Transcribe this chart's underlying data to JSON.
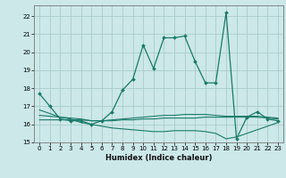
{
  "xlabel": "Humidex (Indice chaleur)",
  "bg_color": "#cce8e8",
  "grid_color": "#aacccc",
  "line_color": "#1a7a6a",
  "xlim": [
    -0.5,
    23.5
  ],
  "ylim": [
    15,
    22.6
  ],
  "yticks": [
    15,
    16,
    17,
    18,
    19,
    20,
    21,
    22
  ],
  "xticks": [
    0,
    1,
    2,
    3,
    4,
    5,
    6,
    7,
    8,
    9,
    10,
    11,
    12,
    13,
    14,
    15,
    16,
    17,
    18,
    19,
    20,
    21,
    22,
    23
  ],
  "series1_x": [
    0,
    1,
    2,
    3,
    4,
    5,
    6,
    7,
    8,
    9,
    10,
    11,
    12,
    13,
    14,
    15,
    16,
    17,
    18,
    19,
    20,
    21,
    22,
    23
  ],
  "series1_y": [
    17.7,
    17.0,
    16.3,
    16.2,
    16.2,
    16.0,
    16.2,
    16.7,
    17.9,
    18.5,
    20.4,
    19.1,
    20.8,
    20.8,
    20.9,
    19.5,
    18.3,
    18.3,
    22.2,
    15.2,
    16.4,
    16.7,
    16.3,
    16.2
  ],
  "series2_x": [
    0,
    1,
    2,
    3,
    4,
    5,
    6,
    7,
    8,
    9,
    10,
    11,
    12,
    13,
    14,
    15,
    16,
    17,
    18,
    19,
    20,
    21,
    22,
    23
  ],
  "series2_y": [
    16.25,
    16.25,
    16.25,
    16.25,
    16.25,
    16.2,
    16.2,
    16.2,
    16.25,
    16.25,
    16.3,
    16.3,
    16.35,
    16.35,
    16.35,
    16.35,
    16.4,
    16.4,
    16.4,
    16.4,
    16.4,
    16.4,
    16.35,
    16.3
  ],
  "series3_x": [
    0,
    1,
    2,
    3,
    4,
    5,
    6,
    7,
    8,
    9,
    10,
    11,
    12,
    13,
    14,
    15,
    16,
    17,
    18,
    19,
    20,
    21,
    22,
    23
  ],
  "series3_y": [
    16.5,
    16.45,
    16.4,
    16.35,
    16.3,
    16.2,
    16.2,
    16.25,
    16.3,
    16.35,
    16.4,
    16.45,
    16.5,
    16.5,
    16.55,
    16.55,
    16.55,
    16.5,
    16.45,
    16.45,
    16.45,
    16.45,
    16.4,
    16.35
  ],
  "series4_x": [
    0,
    1,
    2,
    3,
    4,
    5,
    6,
    7,
    8,
    9,
    10,
    11,
    12,
    13,
    14,
    15,
    16,
    17,
    18,
    19,
    20,
    21,
    22,
    23
  ],
  "series4_y": [
    16.8,
    16.6,
    16.4,
    16.3,
    16.1,
    16.0,
    15.9,
    15.8,
    15.75,
    15.7,
    15.65,
    15.6,
    15.6,
    15.65,
    15.65,
    15.65,
    15.6,
    15.5,
    15.2,
    15.3,
    15.5,
    15.7,
    15.9,
    16.1
  ]
}
